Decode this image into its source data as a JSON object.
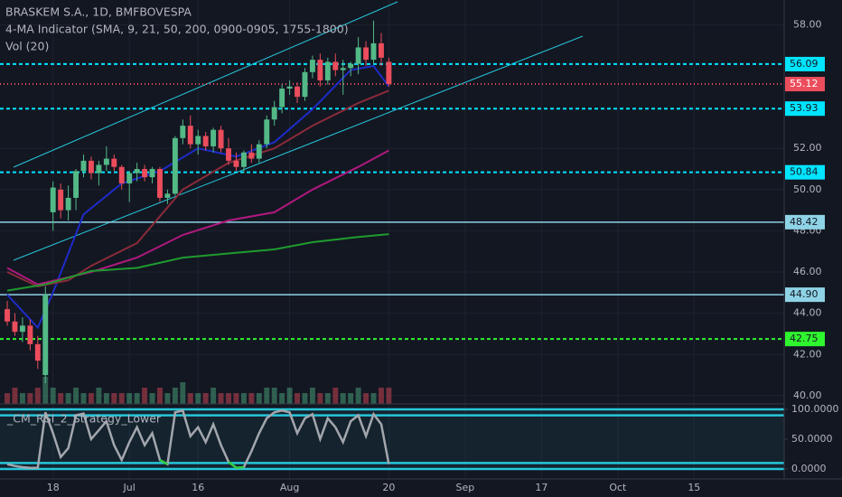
{
  "chart_data": {
    "type": "candlestick",
    "title": "BRASKEM S.A., 1D, BMFBOVESPA",
    "indicator": "4-MA Indicator (SMA, 9, 21, 50, 200, 0900-0905, 1755-1800)",
    "volume_title": "Vol (20)",
    "oscillator_title": "_CM_RSI_2_Strategy_Lower",
    "up_color": "#53b987",
    "down_color": "#eb4d5c",
    "xlim": [
      -0.95,
      101.8
    ],
    "ylim": [
      39.6,
      59.2
    ],
    "xticks": [
      {
        "value": 6,
        "label": "18"
      },
      {
        "value": 16,
        "label": "Jul"
      },
      {
        "value": 25,
        "label": "16"
      },
      {
        "value": 37,
        "label": "Aug"
      },
      {
        "value": 50,
        "label": "20"
      },
      {
        "value": 60,
        "label": "Sep"
      },
      {
        "value": 70,
        "label": "17"
      },
      {
        "value": 80,
        "label": "Oct"
      },
      {
        "value": 90,
        "label": "15"
      }
    ],
    "yticks": [
      {
        "value": 58,
        "label": "58.00"
      },
      {
        "value": 52,
        "label": "52.00"
      },
      {
        "value": 50,
        "label": "50.00"
      },
      {
        "value": 48,
        "label": "48.00"
      },
      {
        "value": 46,
        "label": "46.00"
      },
      {
        "value": 44,
        "label": "44.00"
      },
      {
        "value": 42,
        "label": "42.00"
      },
      {
        "value": 40,
        "label": "40.00"
      }
    ],
    "grid": true,
    "candles": [
      [
        44.2,
        44.6,
        43.4,
        43.6
      ],
      [
        43.6,
        44.0,
        42.9,
        43.1
      ],
      [
        43.1,
        43.8,
        42.6,
        43.4
      ],
      [
        43.4,
        43.7,
        42.2,
        42.5
      ],
      [
        42.5,
        42.9,
        41.3,
        41.7
      ],
      [
        41.0,
        45.3,
        40.6,
        44.9
      ],
      [
        48.9,
        50.4,
        48.0,
        50.1
      ],
      [
        50.0,
        50.3,
        48.6,
        49.0
      ],
      [
        49.0,
        50.2,
        48.5,
        49.6
      ],
      [
        49.6,
        51.0,
        49.0,
        50.9
      ],
      [
        50.9,
        51.7,
        50.6,
        51.4
      ],
      [
        51.4,
        51.6,
        50.5,
        50.8
      ],
      [
        50.8,
        51.4,
        50.2,
        51.2
      ],
      [
        51.2,
        52.1,
        50.9,
        51.5
      ],
      [
        51.5,
        51.7,
        50.9,
        51.1
      ],
      [
        51.1,
        51.2,
        50.0,
        50.3
      ],
      [
        50.3,
        50.9,
        49.4,
        50.8
      ],
      [
        50.8,
        51.3,
        50.4,
        51.0
      ],
      [
        51.0,
        51.2,
        50.4,
        50.6
      ],
      [
        50.6,
        51.1,
        50.3,
        51.0
      ],
      [
        51.0,
        51.1,
        49.4,
        49.6
      ],
      [
        49.6,
        50.0,
        49.3,
        49.8
      ],
      [
        49.8,
        52.6,
        49.7,
        52.5
      ],
      [
        52.5,
        53.4,
        52.2,
        53.1
      ],
      [
        53.1,
        53.6,
        52.0,
        52.2
      ],
      [
        52.2,
        52.9,
        51.7,
        52.6
      ],
      [
        52.6,
        52.8,
        51.9,
        52.1
      ],
      [
        52.1,
        53.0,
        51.8,
        52.9
      ],
      [
        52.9,
        53.1,
        51.8,
        52.0
      ],
      [
        52.0,
        52.5,
        51.2,
        51.4
      ],
      [
        51.4,
        51.8,
        50.9,
        51.1
      ],
      [
        51.1,
        51.9,
        50.8,
        51.8
      ],
      [
        51.8,
        52.2,
        51.3,
        51.5
      ],
      [
        51.5,
        52.4,
        51.3,
        52.2
      ],
      [
        52.2,
        53.6,
        52.0,
        53.4
      ],
      [
        53.4,
        54.3,
        53.1,
        54.0
      ],
      [
        54.0,
        55.1,
        53.7,
        54.9
      ],
      [
        54.9,
        55.3,
        54.6,
        55.0
      ],
      [
        55.0,
        55.2,
        54.2,
        54.5
      ],
      [
        54.5,
        55.9,
        54.3,
        55.7
      ],
      [
        55.7,
        56.5,
        55.4,
        56.3
      ],
      [
        56.3,
        56.6,
        55.0,
        55.3
      ],
      [
        55.3,
        56.4,
        55.1,
        56.2
      ],
      [
        56.2,
        56.6,
        55.5,
        55.8
      ],
      [
        55.8,
        56.3,
        54.6,
        55.9
      ],
      [
        55.9,
        56.2,
        55.5,
        56.1
      ],
      [
        56.1,
        57.4,
        55.6,
        56.9
      ],
      [
        56.9,
        57.2,
        56.0,
        56.3
      ],
      [
        56.3,
        58.2,
        56.1,
        57.1
      ],
      [
        57.1,
        57.6,
        56.0,
        56.4
      ],
      [
        56.2,
        56.4,
        55.0,
        55.12
      ]
    ],
    "volume": [
      2,
      3,
      2,
      2,
      3,
      5,
      3,
      2,
      2,
      3,
      2,
      2,
      3,
      2,
      2,
      2,
      2,
      2,
      3,
      2,
      3,
      2,
      3,
      4,
      2,
      2,
      2,
      3,
      2,
      2,
      2,
      2,
      2,
      2,
      3,
      3,
      2,
      3,
      2,
      2,
      3,
      2,
      2,
      3,
      2,
      2,
      3,
      2,
      2,
      3,
      3
    ],
    "series": [
      {
        "name": "SMA 9",
        "color": "#1e2bc9",
        "x": [
          0,
          4,
          6,
          10,
          15,
          20,
          25,
          30,
          35,
          40,
          45,
          48,
          50
        ],
        "values": [
          44.9,
          43.3,
          45.0,
          48.8,
          50.3,
          50.9,
          52.0,
          51.6,
          52.3,
          53.9,
          55.8,
          56.0,
          55.0
        ]
      },
      {
        "name": "SMA 21",
        "color": "#8b2b3a",
        "x": [
          0,
          4,
          8,
          11,
          17,
          23,
          29,
          35,
          40,
          46,
          50
        ],
        "values": [
          46.0,
          45.3,
          45.6,
          46.3,
          47.4,
          50.0,
          51.3,
          52.0,
          53.1,
          54.2,
          54.8
        ]
      },
      {
        "name": "SMA 50",
        "color": "#b0197e",
        "x": [
          0,
          4,
          11,
          17,
          23,
          29,
          35,
          40,
          46,
          50
        ],
        "values": [
          46.2,
          45.4,
          46.0,
          46.7,
          47.8,
          48.5,
          48.9,
          50.0,
          51.1,
          51.9
        ]
      },
      {
        "name": "SMA 200",
        "color": "#1e9b2e",
        "x": [
          0,
          5,
          11,
          17,
          23,
          29,
          35,
          40,
          46,
          50
        ],
        "values": [
          45.1,
          45.4,
          46.05,
          46.2,
          46.7,
          46.9,
          47.1,
          47.45,
          47.7,
          47.84
        ]
      }
    ],
    "levels": [
      {
        "value": 56.09,
        "label": "56.09",
        "color": "#00e5ff",
        "text_color": "#131722",
        "style": "dashed"
      },
      {
        "value": 55.12,
        "label": "55.12",
        "color": "#eb4d5c",
        "text_color": "#ffffff",
        "style": "dotted"
      },
      {
        "value": 53.93,
        "label": "53.93",
        "color": "#00e5ff",
        "text_color": "#131722",
        "style": "dashed"
      },
      {
        "value": 50.84,
        "label": "50.84",
        "color": "#00e5ff",
        "text_color": "#131722",
        "style": "dashed"
      },
      {
        "value": 48.42,
        "label": "48.42",
        "color": "#8fd3e6",
        "text_color": "#131722",
        "style": "solid"
      },
      {
        "value": 44.9,
        "label": "44.90",
        "color": "#8fd3e6",
        "text_color": "#131722",
        "style": "solid"
      },
      {
        "value": 42.75,
        "label": "42.75",
        "color": "#2ff52f",
        "text_color": "#131722",
        "style": "dashed"
      }
    ],
    "oscillator": {
      "ylim": [
        -16.7,
        109.1
      ],
      "yticks": [
        {
          "value": 100,
          "label": "100.0000"
        },
        {
          "value": 50,
          "label": "50.0000"
        },
        {
          "value": 0,
          "label": "0.0000"
        }
      ],
      "bands": [
        100,
        90,
        10,
        0
      ],
      "band_color": "#26c6da",
      "color": "#a3a6ad",
      "oversold": 15,
      "oversold_color": "#2ecc40",
      "values": [
        8,
        5,
        3,
        2,
        2,
        95,
        60,
        20,
        35,
        90,
        93,
        50,
        65,
        80,
        40,
        15,
        45,
        70,
        40,
        60,
        15,
        8,
        95,
        98,
        55,
        70,
        45,
        75,
        40,
        12,
        2,
        3,
        30,
        60,
        85,
        95,
        98,
        95,
        60,
        85,
        92,
        50,
        85,
        70,
        45,
        80,
        90,
        55,
        92,
        75,
        8
      ]
    }
  }
}
